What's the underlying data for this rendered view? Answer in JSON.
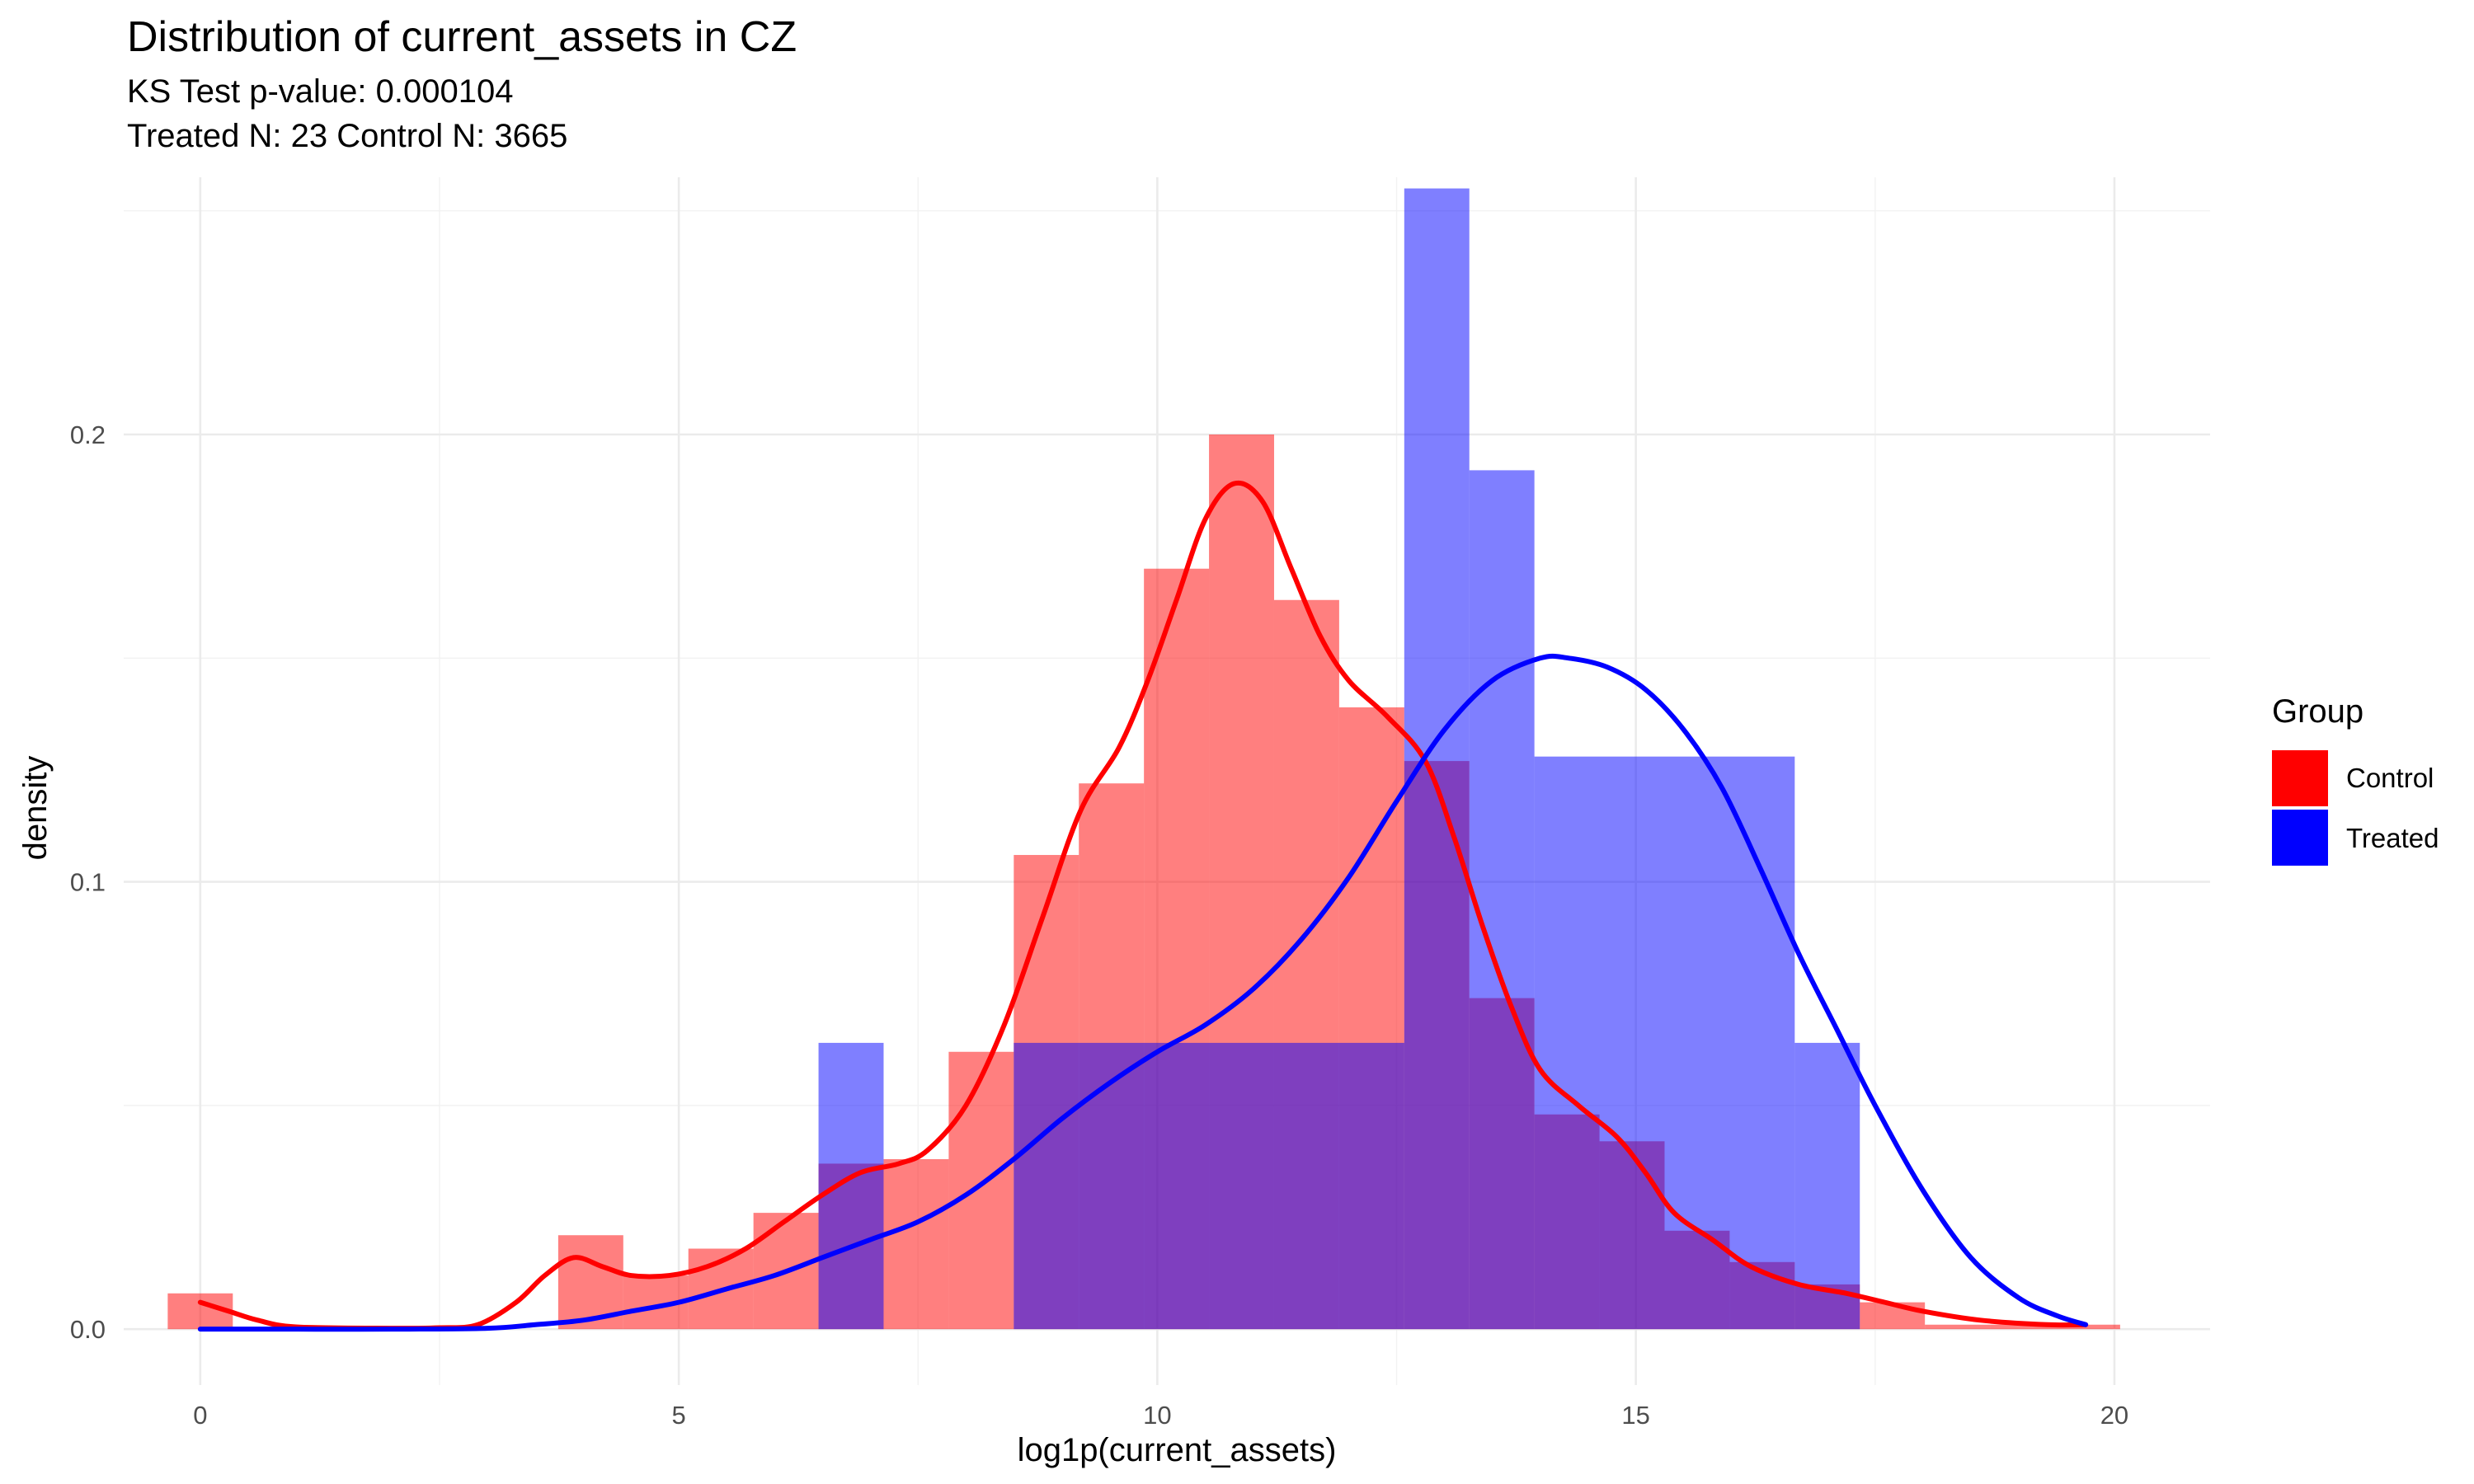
{
  "chart_data": {
    "type": "histogram",
    "title": "Distribution of current_assets in CZ",
    "subtitle_lines": [
      "KS Test p-value: 0.000104",
      "Treated N: 23 Control N: 3665"
    ],
    "xlabel": "log1p(current_assets)",
    "ylabel": "density",
    "xlim": [
      -0.8,
      21.0
    ],
    "ylim": [
      -0.0125,
      0.2575
    ],
    "x_ticks": [
      0,
      5,
      10,
      15,
      20
    ],
    "x_tick_labels": [
      "0",
      "5",
      "10",
      "15",
      "20"
    ],
    "x_minor": [
      2.5,
      7.5,
      12.5,
      17.5
    ],
    "y_ticks": [
      0.0,
      0.1,
      0.2
    ],
    "y_tick_labels": [
      "0.0",
      "0.1",
      "0.2"
    ],
    "y_minor": [
      0.05,
      0.15,
      0.25
    ],
    "grid": true,
    "legend": {
      "title": "Group",
      "position": "right",
      "entries": [
        "Control",
        "Treated"
      ]
    },
    "colors": {
      "Control": "#ff0000",
      "Treated": "#0000ff"
    },
    "histograms": [
      {
        "name": "Control",
        "bins": [
          [
            -0.34,
            0.34,
            0.008
          ],
          [
            3.74,
            4.42,
            0.021
          ],
          [
            4.42,
            5.1,
            0.012
          ],
          [
            5.1,
            5.78,
            0.018
          ],
          [
            5.78,
            6.46,
            0.026
          ],
          [
            6.46,
            7.14,
            0.037
          ],
          [
            7.14,
            7.82,
            0.038
          ],
          [
            7.82,
            8.5,
            0.062
          ],
          [
            8.5,
            9.18,
            0.106
          ],
          [
            9.18,
            9.86,
            0.122
          ],
          [
            9.86,
            10.54,
            0.17
          ],
          [
            10.54,
            11.22,
            0.2
          ],
          [
            11.22,
            11.9,
            0.163
          ],
          [
            11.9,
            12.58,
            0.139
          ],
          [
            12.58,
            13.26,
            0.127
          ],
          [
            13.26,
            13.94,
            0.074
          ],
          [
            13.94,
            14.62,
            0.048
          ],
          [
            14.62,
            15.3,
            0.042
          ],
          [
            15.3,
            15.98,
            0.022
          ],
          [
            15.98,
            16.66,
            0.015
          ],
          [
            16.66,
            17.34,
            0.01
          ],
          [
            17.34,
            18.02,
            0.006
          ],
          [
            18.02,
            18.7,
            0.001
          ],
          [
            18.7,
            19.38,
            0.001
          ],
          [
            19.38,
            20.06,
            0.001
          ]
        ]
      },
      {
        "name": "Treated",
        "bins": [
          [
            6.46,
            7.14,
            0.064
          ],
          [
            8.5,
            12.58,
            0.064
          ],
          [
            12.58,
            13.26,
            0.255
          ],
          [
            13.26,
            13.94,
            0.192
          ],
          [
            13.94,
            16.66,
            0.128
          ],
          [
            16.66,
            17.34,
            0.064
          ]
        ]
      }
    ],
    "density_curves": [
      {
        "name": "Control",
        "points": [
          [
            0,
            0.006
          ],
          [
            0.3,
            0.004
          ],
          [
            0.6,
            0.002
          ],
          [
            1,
            0.0005
          ],
          [
            2,
            0.0002
          ],
          [
            2.5,
            0.0003
          ],
          [
            2.9,
            0.001
          ],
          [
            3.3,
            0.006
          ],
          [
            3.6,
            0.012
          ],
          [
            3.9,
            0.016
          ],
          [
            4.2,
            0.014
          ],
          [
            4.5,
            0.012
          ],
          [
            4.9,
            0.012
          ],
          [
            5.3,
            0.014
          ],
          [
            5.7,
            0.018
          ],
          [
            6.1,
            0.024
          ],
          [
            6.5,
            0.03
          ],
          [
            6.9,
            0.035
          ],
          [
            7.3,
            0.037
          ],
          [
            7.6,
            0.04
          ],
          [
            8.0,
            0.05
          ],
          [
            8.4,
            0.068
          ],
          [
            8.8,
            0.092
          ],
          [
            9.2,
            0.116
          ],
          [
            9.6,
            0.13
          ],
          [
            9.9,
            0.145
          ],
          [
            10.2,
            0.163
          ],
          [
            10.5,
            0.181
          ],
          [
            10.8,
            0.189
          ],
          [
            11.1,
            0.185
          ],
          [
            11.4,
            0.17
          ],
          [
            11.7,
            0.155
          ],
          [
            12.0,
            0.145
          ],
          [
            12.4,
            0.137
          ],
          [
            12.8,
            0.127
          ],
          [
            13.1,
            0.11
          ],
          [
            13.4,
            0.09
          ],
          [
            13.7,
            0.072
          ],
          [
            14.0,
            0.058
          ],
          [
            14.4,
            0.05
          ],
          [
            14.8,
            0.043
          ],
          [
            15.1,
            0.035
          ],
          [
            15.4,
            0.026
          ],
          [
            15.8,
            0.02
          ],
          [
            16.2,
            0.014
          ],
          [
            16.7,
            0.01
          ],
          [
            17.2,
            0.008
          ],
          [
            17.6,
            0.006
          ],
          [
            18.0,
            0.004
          ],
          [
            18.6,
            0.002
          ],
          [
            19.3,
            0.001
          ],
          [
            19.7,
            0.001
          ]
        ]
      },
      {
        "name": "Treated",
        "points": [
          [
            0,
            0
          ],
          [
            1,
            0
          ],
          [
            2,
            0
          ],
          [
            3,
            0.0002
          ],
          [
            3.5,
            0.001
          ],
          [
            4,
            0.002
          ],
          [
            4.5,
            0.004
          ],
          [
            5,
            0.006
          ],
          [
            5.5,
            0.009
          ],
          [
            6,
            0.012
          ],
          [
            6.5,
            0.016
          ],
          [
            7,
            0.02
          ],
          [
            7.5,
            0.024
          ],
          [
            8,
            0.03
          ],
          [
            8.5,
            0.038
          ],
          [
            9,
            0.047
          ],
          [
            9.5,
            0.055
          ],
          [
            10,
            0.062
          ],
          [
            10.5,
            0.068
          ],
          [
            11,
            0.076
          ],
          [
            11.5,
            0.087
          ],
          [
            12,
            0.101
          ],
          [
            12.5,
            0.118
          ],
          [
            13,
            0.134
          ],
          [
            13.5,
            0.145
          ],
          [
            14,
            0.15
          ],
          [
            14.3,
            0.15
          ],
          [
            14.7,
            0.148
          ],
          [
            15.1,
            0.143
          ],
          [
            15.5,
            0.134
          ],
          [
            15.9,
            0.121
          ],
          [
            16.3,
            0.103
          ],
          [
            16.7,
            0.084
          ],
          [
            17.1,
            0.067
          ],
          [
            17.5,
            0.05
          ],
          [
            18,
            0.031
          ],
          [
            18.5,
            0.016
          ],
          [
            19,
            0.007
          ],
          [
            19.4,
            0.003
          ],
          [
            19.7,
            0.001
          ]
        ]
      }
    ]
  }
}
